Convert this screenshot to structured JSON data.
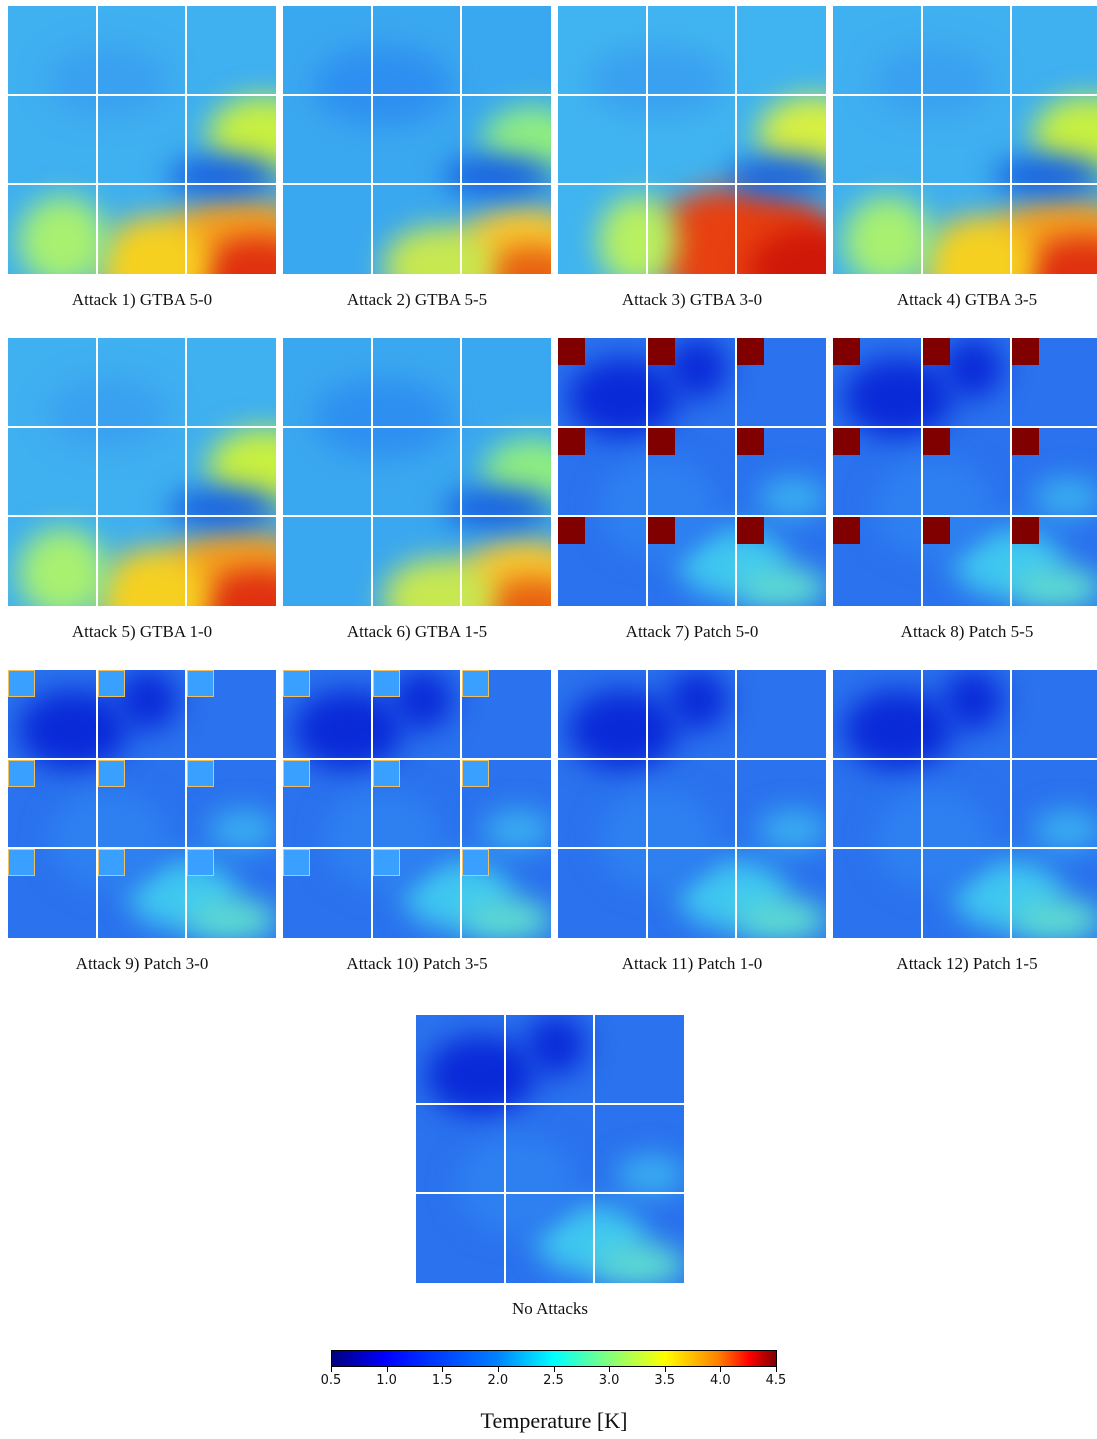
{
  "panels": [
    {
      "caption": "Attack 1) GTBA 5-0",
      "theme": "warm",
      "patches": []
    },
    {
      "caption": "Attack 2) GTBA 5-5",
      "theme": "mild",
      "patches": []
    },
    {
      "caption": "Attack 3) GTBA 3-0",
      "theme": "hot",
      "patches": []
    },
    {
      "caption": "Attack 4) GTBA 3-5",
      "theme": "warm",
      "patches": []
    },
    {
      "caption": "Attack 5) GTBA 1-0",
      "theme": "warm",
      "patches": []
    },
    {
      "caption": "Attack 6) GTBA 1-5",
      "theme": "mild",
      "patches": []
    },
    {
      "caption": "Attack 7) Patch 5-0",
      "theme": "cold",
      "patches": [
        "solid"
      ]
    },
    {
      "caption": "Attack 8) Patch 5-5",
      "theme": "cold",
      "patches": [
        "solid"
      ]
    },
    {
      "caption": "Attack 9) Patch 3-0",
      "theme": "cold",
      "patches": [
        "soft"
      ]
    },
    {
      "caption": "Attack 10) Patch 3-5",
      "theme": "cold",
      "patches": [
        "soft"
      ]
    },
    {
      "caption": "Attack 11) Patch 1-0",
      "theme": "cold",
      "patches": []
    },
    {
      "caption": "Attack 12) Patch 1-5",
      "theme": "cold",
      "patches": []
    },
    {
      "caption": "No Attacks",
      "theme": "cold",
      "patches": []
    }
  ],
  "colorbar": {
    "label": "Temperature [K]",
    "min": 0.5,
    "max": 4.5,
    "ticks": [
      "0.5",
      "1.0",
      "1.5",
      "2.0",
      "2.5",
      "3.0",
      "3.5",
      "4.0",
      "4.5"
    ],
    "colormap": "jet"
  }
}
